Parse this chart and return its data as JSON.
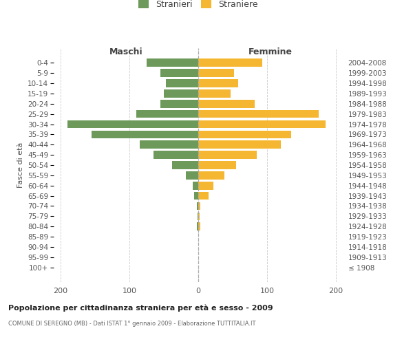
{
  "age_groups": [
    "100+",
    "95-99",
    "90-94",
    "85-89",
    "80-84",
    "75-79",
    "70-74",
    "65-69",
    "60-64",
    "55-59",
    "50-54",
    "45-49",
    "40-44",
    "35-39",
    "30-34",
    "25-29",
    "20-24",
    "15-19",
    "10-14",
    "5-9",
    "0-4"
  ],
  "birth_years": [
    "≤ 1908",
    "1909-1913",
    "1914-1918",
    "1919-1923",
    "1924-1928",
    "1929-1933",
    "1934-1938",
    "1939-1943",
    "1944-1948",
    "1949-1953",
    "1954-1958",
    "1959-1963",
    "1964-1968",
    "1969-1973",
    "1974-1978",
    "1979-1983",
    "1984-1988",
    "1989-1993",
    "1994-1998",
    "1999-2003",
    "2004-2008"
  ],
  "maschi": [
    0,
    0,
    0,
    0,
    2,
    1,
    2,
    6,
    8,
    18,
    38,
    65,
    85,
    155,
    190,
    90,
    55,
    50,
    47,
    55,
    75
  ],
  "femmine": [
    0,
    0,
    0,
    0,
    3,
    2,
    3,
    15,
    22,
    38,
    55,
    85,
    120,
    135,
    185,
    175,
    82,
    47,
    58,
    52,
    93
  ],
  "male_color": "#6d9a5b",
  "female_color": "#f5b731",
  "title": "Popolazione per cittadinanza straniera per età e sesso - 2009",
  "subtitle": "COMUNE DI SEREGNO (MB) - Dati ISTAT 1° gennaio 2009 - Elaborazione TUTTITALIA.IT",
  "xlabel_left": "Maschi",
  "xlabel_right": "Femmine",
  "ylabel_left": "Fasce di età",
  "legend_male": "Stranieri",
  "legend_female": "Straniere",
  "xlim": 210,
  "background_color": "#ffffff",
  "grid_color": "#cccccc"
}
